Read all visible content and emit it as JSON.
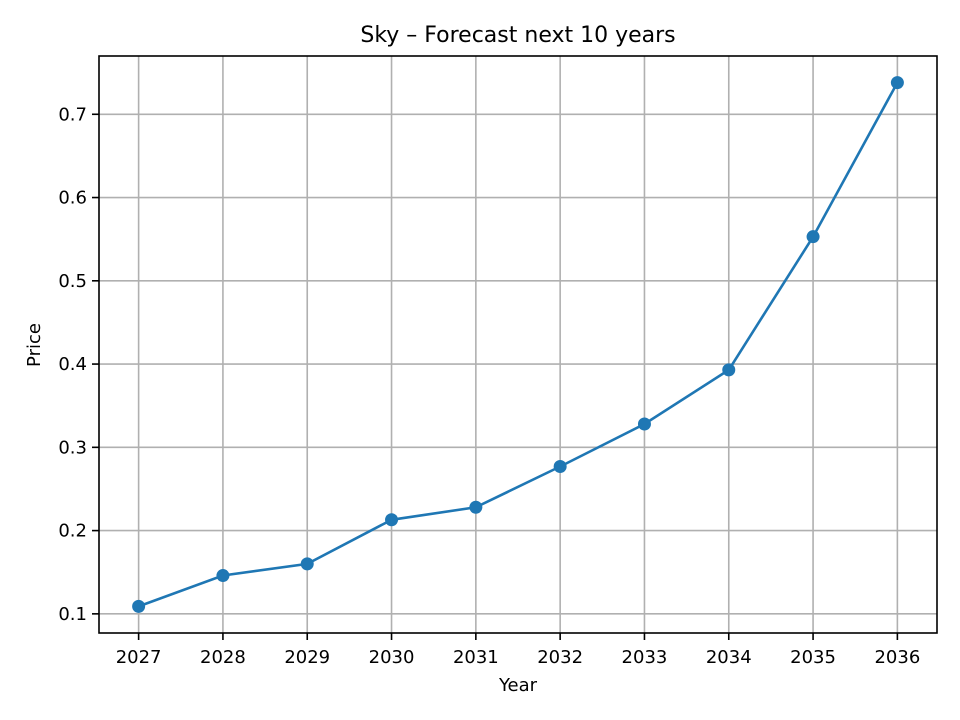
{
  "chart_data": {
    "type": "line",
    "title": "Sky – Forecast next 10 years",
    "xlabel": "Year",
    "ylabel": "Price",
    "x": [
      2027,
      2028,
      2029,
      2030,
      2031,
      2032,
      2033,
      2034,
      2035,
      2036
    ],
    "series": [
      {
        "values": [
          0.109,
          0.146,
          0.16,
          0.213,
          0.228,
          0.277,
          0.328,
          0.393,
          0.553,
          0.738
        ]
      }
    ],
    "yticks": [
      0.1,
      0.2,
      0.3,
      0.4,
      0.5,
      0.6,
      0.7
    ],
    "ytick_labels": [
      "0.1",
      "0.2",
      "0.3",
      "0.4",
      "0.5",
      "0.6",
      "0.7"
    ],
    "xtick_labels": [
      "2027",
      "2028",
      "2029",
      "2030",
      "2031",
      "2032",
      "2033",
      "2034",
      "2035",
      "2036"
    ],
    "xlim": [
      2026.53,
      2036.47
    ],
    "ylim": [
      0.077,
      0.77
    ],
    "grid": true,
    "legend": "none",
    "markers": "circle",
    "color": "#1f77b4"
  }
}
